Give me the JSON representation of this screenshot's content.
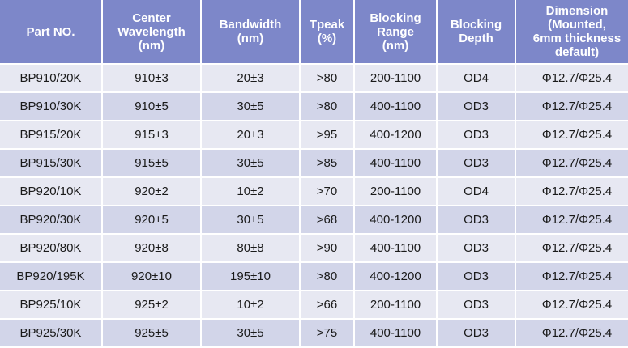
{
  "table": {
    "header": [
      [
        "Part NO."
      ],
      [
        "Center",
        "Wavelength",
        "(nm)"
      ],
      [
        "Bandwidth",
        "(nm)"
      ],
      [
        "Tpeak",
        "(%)"
      ],
      [
        "Blocking",
        "Range",
        "(nm)"
      ],
      [
        "Blocking",
        "Depth"
      ],
      [
        "Dimension",
        "(Mounted,",
        "6mm thickness",
        "default)"
      ]
    ],
    "rows": [
      [
        "BP910/20K",
        "910±3",
        "20±3",
        ">80",
        "200-1100",
        "OD4",
        "Φ12.7/Φ25.4"
      ],
      [
        "BP910/30K",
        "910±5",
        "30±5",
        ">80",
        "400-1100",
        "OD3",
        "Φ12.7/Φ25.4"
      ],
      [
        "BP915/20K",
        "915±3",
        "20±3",
        ">95",
        "400-1200",
        "OD3",
        "Φ12.7/Φ25.4"
      ],
      [
        "BP915/30K",
        "915±5",
        "30±5",
        ">85",
        "400-1100",
        "OD3",
        "Φ12.7/Φ25.4"
      ],
      [
        "BP920/10K",
        "920±2",
        "10±2",
        ">70",
        "200-1100",
        "OD4",
        "Φ12.7/Φ25.4"
      ],
      [
        "BP920/30K",
        "920±5",
        "30±5",
        ">68",
        "400-1200",
        "OD3",
        "Φ12.7/Φ25.4"
      ],
      [
        "BP920/80K",
        "920±8",
        "80±8",
        ">90",
        "400-1100",
        "OD3",
        "Φ12.7/Φ25.4"
      ],
      [
        "BP920/195K",
        "920±10",
        "195±10",
        ">80",
        "400-1200",
        "OD3",
        "Φ12.7/Φ25.4"
      ],
      [
        "BP925/10K",
        "925±2",
        "10±2",
        ">66",
        "200-1100",
        "OD3",
        "Φ12.7/Φ25.4"
      ],
      [
        "BP925/30K",
        "925±5",
        "30±5",
        ">75",
        "400-1100",
        "OD3",
        "Φ12.7/Φ25.4"
      ]
    ]
  }
}
